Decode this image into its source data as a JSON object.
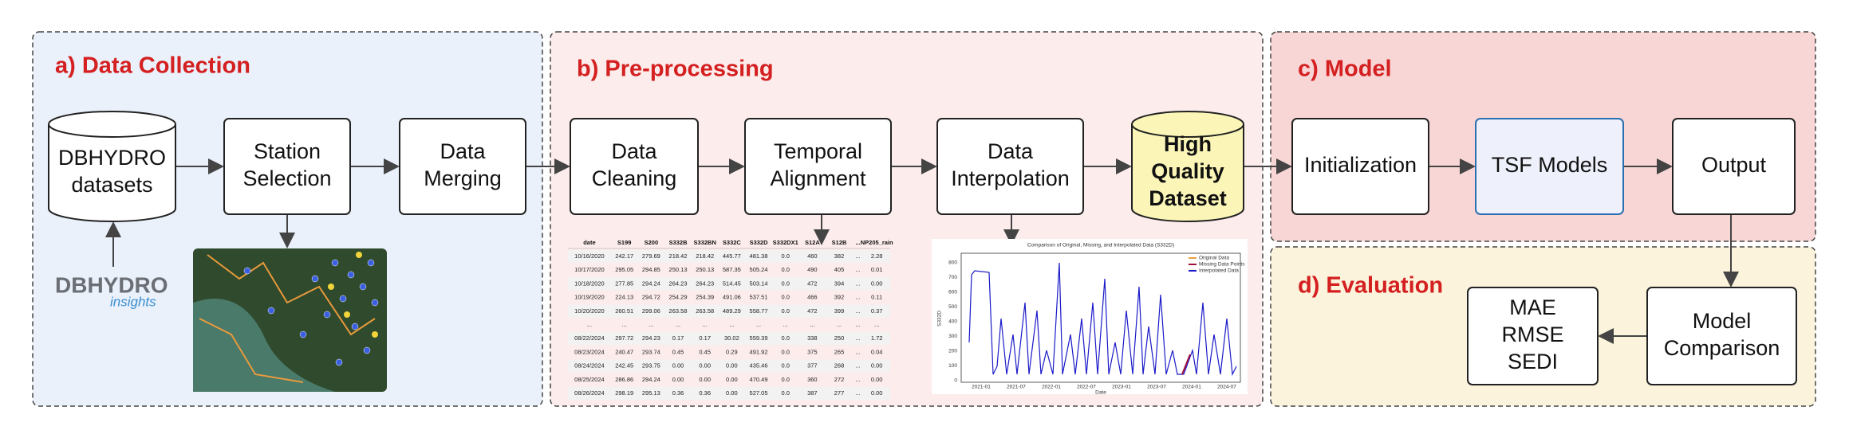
{
  "panels": [
    {
      "title": "a) Data Collection"
    },
    {
      "title": "b) Pre-processing"
    },
    {
      "title": "c) Model"
    },
    {
      "title": "d) Evaluation"
    }
  ],
  "nodes": [
    {
      "lines": [
        "DBHYDRO",
        "datasets"
      ]
    },
    {
      "lines": [
        "Station",
        "Selection"
      ]
    },
    {
      "lines": [
        "Data",
        "Merging"
      ]
    },
    {
      "lines": [
        "Data",
        "Cleaning"
      ]
    },
    {
      "lines": [
        "Temporal",
        "Alignment"
      ]
    },
    {
      "lines": [
        "Data",
        "Interpolation"
      ]
    },
    {
      "lines": [
        "High",
        "Quality",
        "Dataset"
      ]
    },
    {
      "lines": [
        "Initialization"
      ]
    },
    {
      "lines": [
        "TSF Models"
      ]
    },
    {
      "lines": [
        "Output"
      ]
    },
    {
      "lines": [
        "Model",
        "Comparison"
      ]
    },
    {
      "lines": [
        "MAE",
        "RMSE",
        "SEDI"
      ]
    }
  ],
  "logo": {
    "main": "DBHYDRO",
    "sub": "insights"
  },
  "table": {
    "header": [
      "date",
      "S199",
      "S200",
      "S332B",
      "S332BN",
      "S332C",
      "S332D",
      "S332DX1",
      "S12A",
      "S12B",
      "...",
      "NP205_rain"
    ],
    "rows": [
      [
        "10/16/2020",
        "242.17",
        "279.69",
        "218.42",
        "218.42",
        "445.77",
        "481.38",
        "0.0",
        "460",
        "382",
        "...",
        "2.28"
      ],
      [
        "10/17/2020",
        "295.05",
        "294.85",
        "250.13",
        "250.13",
        "587.35",
        "505.24",
        "0.0",
        "490",
        "405",
        "...",
        "0.01"
      ],
      [
        "10/18/2020",
        "277.85",
        "294.24",
        "264.23",
        "264.23",
        "514.45",
        "503.14",
        "0.0",
        "472",
        "394",
        "...",
        "0.00"
      ],
      [
        "10/19/2020",
        "224.13",
        "294.72",
        "254.29",
        "254.39",
        "491.06",
        "537.51",
        "0.0",
        "466",
        "392",
        "...",
        "0.11"
      ],
      [
        "10/20/2020",
        "260.51",
        "299.06",
        "263.58",
        "263.58",
        "489.29",
        "558.77",
        "0.0",
        "472",
        "399",
        "...",
        "0.37"
      ],
      [
        "...",
        "...",
        "...",
        "...",
        "...",
        "...",
        "...",
        "...",
        "...",
        "...",
        "...",
        "..."
      ],
      [
        "08/22/2024",
        "297.72",
        "294.23",
        "0.17",
        "0.17",
        "30.02",
        "559.39",
        "0.0",
        "338",
        "250",
        "...",
        "1.72"
      ],
      [
        "08/23/2024",
        "240.47",
        "293.74",
        "0.45",
        "0.45",
        "0.29",
        "491.92",
        "0.0",
        "375",
        "265",
        "...",
        "0.04"
      ],
      [
        "08/24/2024",
        "242.45",
        "293.75",
        "0.00",
        "0.00",
        "0.00",
        "435.46",
        "0.0",
        "377",
        "268",
        "...",
        "0.00"
      ],
      [
        "08/25/2024",
        "286.86",
        "294.24",
        "0.00",
        "0.00",
        "0.00",
        "470.49",
        "0.0",
        "360",
        "272",
        "...",
        "0.00"
      ],
      [
        "08/26/2024",
        "298.19",
        "295.13",
        "0.36",
        "0.36",
        "0.00",
        "527.05",
        "0.0",
        "387",
        "277",
        "...",
        "0.00"
      ]
    ]
  },
  "plot": {
    "title": "Comparison of Original, Missing, and Interpolated Data (S332D)",
    "legend": [
      "Original Data",
      "Missing Data Points",
      "Interpolated Data"
    ],
    "xlabel": "Date",
    "ylabel": "S332D",
    "xticks": [
      "2021-01",
      "2021-07",
      "2022-01",
      "2022-07",
      "2023-01",
      "2023-07",
      "2024-01",
      "2024-07"
    ],
    "yticks": [
      "0",
      "100",
      "200",
      "300",
      "400",
      "500",
      "600",
      "700",
      "800"
    ]
  }
}
